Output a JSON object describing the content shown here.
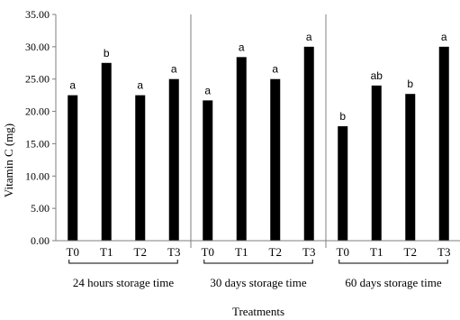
{
  "chart_data": {
    "type": "bar",
    "ylabel": "Vitamin C (mg)",
    "xlabel": "Treatments",
    "ylim": [
      0,
      35
    ],
    "ytick_step": 5,
    "ytick_labels": [
      "0.00",
      "5.00",
      "10.00",
      "15.00",
      "20.00",
      "25.00",
      "30.00",
      "35.00"
    ],
    "grid": false,
    "groups": [
      {
        "name": "24 hours storage time",
        "categories": [
          "T0",
          "T1",
          "T2",
          "T3"
        ],
        "values": [
          22.5,
          27.5,
          22.5,
          25.0
        ],
        "labels": [
          "a",
          "b",
          "a",
          "a"
        ]
      },
      {
        "name": "30 days storage time",
        "categories": [
          "T0",
          "T1",
          "T2",
          "T3"
        ],
        "values": [
          21.7,
          28.4,
          25.0,
          30.0
        ],
        "labels": [
          "a",
          "a",
          "a",
          "a"
        ]
      },
      {
        "name": "60 days storage time",
        "categories": [
          "T0",
          "T1",
          "T2",
          "T3"
        ],
        "values": [
          17.7,
          24.0,
          22.7,
          30.0
        ],
        "labels": [
          "b",
          "ab",
          "b",
          "a"
        ]
      }
    ],
    "colors": {
      "bar": "#000000",
      "axis": "#7f7f7f"
    }
  }
}
